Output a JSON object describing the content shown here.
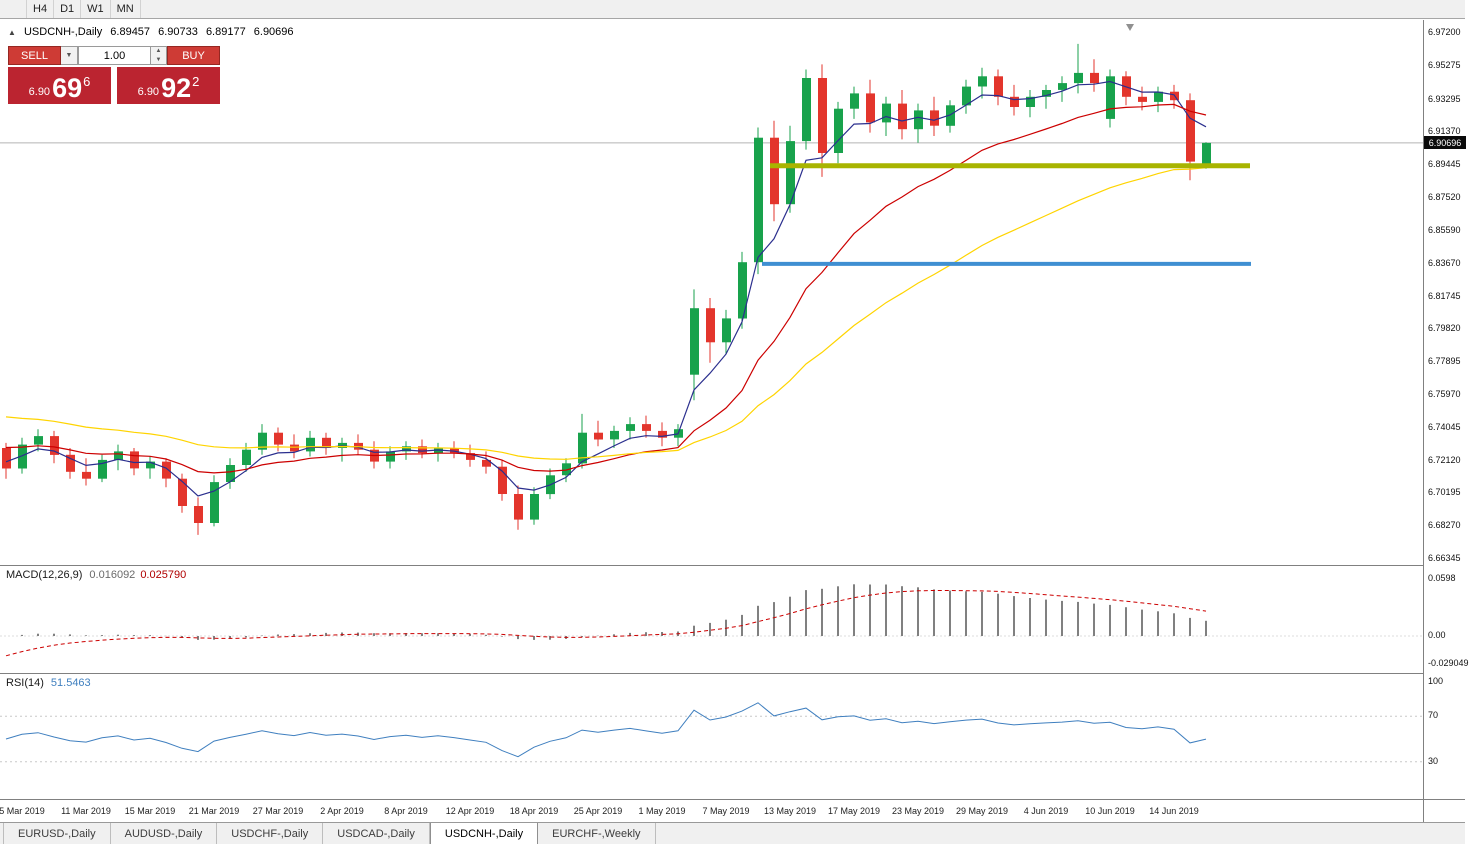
{
  "toolbar": {
    "items": [
      {
        "label": "H4"
      },
      {
        "label": "D1"
      },
      {
        "label": "W1"
      },
      {
        "label": "MN"
      }
    ]
  },
  "chart_header": {
    "collapse_icon": "▲",
    "symbol": "USDCNH-,Daily",
    "open": "6.89457",
    "high": "6.90733",
    "low": "6.89177",
    "close": "6.90696"
  },
  "trade_panel": {
    "sell_label": "SELL",
    "buy_label": "BUY",
    "volume": "1.00",
    "dropdown_icon": "▼",
    "spinner_up_icon": "▲",
    "spinner_down_icon": "▼",
    "sell_price": {
      "prefix": "6.90",
      "big": "69",
      "sup": "6"
    },
    "buy_price": {
      "prefix": "6.90",
      "big": "92",
      "sup": "2"
    }
  },
  "price_axis": {
    "labels": [
      "6.97200",
      "6.95275",
      "6.93295",
      "6.91370",
      "6.89445",
      "6.87520",
      "6.85590",
      "6.83670",
      "6.81745",
      "6.79820",
      "6.77895",
      "6.75970",
      "6.74045",
      "6.72120",
      "6.70195",
      "6.68270",
      "6.66345"
    ],
    "current": "6.90696"
  },
  "indicators": {
    "macd": {
      "label": "MACD(12,26,9)",
      "value1": "0.016092",
      "value2": "0.025790",
      "axis": [
        "0.0598",
        "0.00",
        "-0.029049"
      ]
    },
    "rsi": {
      "label": "RSI(14)",
      "value": "51.5463",
      "axis": [
        "100",
        "70",
        "30"
      ]
    }
  },
  "date_axis": {
    "labels": [
      "5 Mar 2019",
      "11 Mar 2019",
      "15 Mar 2019",
      "21 Mar 2019",
      "27 Mar 2019",
      "2 Apr 2019",
      "8 Apr 2019",
      "12 Apr 2019",
      "18 Apr 2019",
      "25 Apr 2019",
      "1 May 2019",
      "7 May 2019",
      "13 May 2019",
      "17 May 2019",
      "23 May 2019",
      "29 May 2019",
      "4 Jun 2019",
      "10 Jun 2019",
      "14 Jun 2019"
    ]
  },
  "bottom_tabs": {
    "items": [
      {
        "label": "EURUSD-,Daily",
        "active": false
      },
      {
        "label": "AUDUSD-,Daily",
        "active": false
      },
      {
        "label": "USDCHF-,Daily",
        "active": false
      },
      {
        "label": "USDCAD-,Daily",
        "active": false
      },
      {
        "label": "USDCNH-,Daily",
        "active": true
      },
      {
        "label": "EURCHF-,Weekly",
        "active": false
      }
    ]
  },
  "colors": {
    "candle_up": "#18a24c",
    "candle_down": "#e3352c",
    "macd_histogram": "#808080",
    "macd_signal": "#cc0000",
    "rsi_line": "#3f7fbf",
    "current_price_line": "#b5b5b5",
    "badge_bg": "#0a0a0a",
    "trade_button_red": "#ce3b35",
    "trade_box_red": "#bb2430"
  },
  "chart_data": {
    "type": "candlestick",
    "title": "USDCNH- Daily",
    "ylim": [
      6.66345,
      6.972
    ],
    "ohlc_last": {
      "open": 6.89457,
      "high": 6.90733,
      "low": 6.89177,
      "close": 6.90696
    },
    "candles": [
      [
        6.728,
        6.731,
        6.71,
        6.716
      ],
      [
        6.716,
        6.734,
        6.713,
        6.73
      ],
      [
        6.73,
        6.739,
        6.726,
        6.735
      ],
      [
        6.735,
        6.738,
        6.719,
        6.724
      ],
      [
        6.724,
        6.728,
        6.71,
        6.714
      ],
      [
        6.714,
        6.722,
        6.706,
        6.71
      ],
      [
        6.71,
        6.724,
        6.708,
        6.721
      ],
      [
        6.721,
        6.73,
        6.715,
        6.726
      ],
      [
        6.726,
        6.728,
        6.712,
        6.716
      ],
      [
        6.716,
        6.723,
        6.71,
        6.72
      ],
      [
        6.72,
        6.722,
        6.705,
        6.71
      ],
      [
        6.71,
        6.713,
        6.69,
        6.694
      ],
      [
        6.694,
        6.699,
        6.677,
        6.684
      ],
      [
        6.684,
        6.712,
        6.682,
        6.708
      ],
      [
        6.708,
        6.722,
        6.704,
        6.718
      ],
      [
        6.718,
        6.731,
        6.714,
        6.727
      ],
      [
        6.727,
        6.742,
        6.724,
        6.737
      ],
      [
        6.737,
        6.74,
        6.726,
        6.73
      ],
      [
        6.73,
        6.736,
        6.722,
        6.726
      ],
      [
        6.726,
        6.738,
        6.723,
        6.734
      ],
      [
        6.734,
        6.737,
        6.724,
        6.728
      ],
      [
        6.728,
        6.734,
        6.72,
        6.731
      ],
      [
        6.731,
        6.736,
        6.724,
        6.727
      ],
      [
        6.727,
        6.732,
        6.716,
        6.72
      ],
      [
        6.72,
        6.729,
        6.716,
        6.726
      ],
      [
        6.726,
        6.732,
        6.721,
        6.729
      ],
      [
        6.729,
        6.733,
        6.722,
        6.725
      ],
      [
        6.725,
        6.731,
        6.72,
        6.728
      ],
      [
        6.728,
        6.732,
        6.722,
        6.725
      ],
      [
        6.725,
        6.73,
        6.717,
        6.721
      ],
      [
        6.721,
        6.726,
        6.713,
        6.717
      ],
      [
        6.717,
        6.721,
        6.697,
        6.701
      ],
      [
        6.701,
        6.706,
        6.68,
        6.686
      ],
      [
        6.686,
        6.705,
        6.683,
        6.701
      ],
      [
        6.701,
        6.716,
        6.698,
        6.712
      ],
      [
        6.712,
        6.722,
        6.708,
        6.719
      ],
      [
        6.719,
        6.748,
        6.716,
        6.737
      ],
      [
        6.737,
        6.744,
        6.729,
        6.733
      ],
      [
        6.733,
        6.741,
        6.728,
        6.738
      ],
      [
        6.738,
        6.746,
        6.733,
        6.742
      ],
      [
        6.742,
        6.747,
        6.734,
        6.738
      ],
      [
        6.738,
        6.743,
        6.729,
        6.734
      ],
      [
        6.734,
        6.742,
        6.729,
        6.739
      ],
      [
        6.771,
        6.821,
        6.756,
        6.81
      ],
      [
        6.81,
        6.816,
        6.778,
        6.79
      ],
      [
        6.79,
        6.809,
        6.783,
        6.804
      ],
      [
        6.804,
        6.843,
        6.798,
        6.837
      ],
      [
        6.837,
        6.916,
        6.83,
        6.91
      ],
      [
        6.91,
        6.92,
        6.861,
        6.871
      ],
      [
        6.871,
        6.917,
        6.866,
        6.908
      ],
      [
        6.908,
        6.95,
        6.903,
        6.945
      ],
      [
        6.945,
        6.953,
        6.887,
        6.901
      ],
      [
        6.901,
        6.931,
        6.895,
        6.927
      ],
      [
        6.927,
        6.94,
        6.921,
        6.936
      ],
      [
        6.936,
        6.944,
        6.913,
        6.919
      ],
      [
        6.919,
        6.934,
        6.911,
        6.93
      ],
      [
        6.93,
        6.938,
        6.909,
        6.915
      ],
      [
        6.915,
        6.93,
        6.907,
        6.926
      ],
      [
        6.926,
        6.934,
        6.911,
        6.917
      ],
      [
        6.917,
        6.932,
        6.913,
        6.929
      ],
      [
        6.929,
        6.944,
        6.924,
        6.94
      ],
      [
        6.94,
        6.951,
        6.933,
        6.946
      ],
      [
        6.946,
        6.95,
        6.929,
        6.934
      ],
      [
        6.934,
        6.941,
        6.923,
        6.928
      ],
      [
        6.928,
        6.938,
        6.922,
        6.934
      ],
      [
        6.934,
        6.941,
        6.927,
        6.938
      ],
      [
        6.938,
        6.946,
        6.931,
        6.942
      ],
      [
        6.942,
        6.965,
        6.936,
        6.948
      ],
      [
        6.948,
        6.956,
        6.937,
        6.942
      ],
      [
        6.921,
        6.95,
        6.916,
        6.946
      ],
      [
        6.946,
        6.949,
        6.929,
        6.934
      ],
      [
        6.934,
        6.94,
        6.926,
        6.931
      ],
      [
        6.931,
        6.94,
        6.925,
        6.937
      ],
      [
        6.937,
        6.941,
        6.927,
        6.932
      ],
      [
        6.932,
        6.936,
        6.885,
        6.896
      ],
      [
        6.89457,
        6.90733,
        6.89177,
        6.90696
      ]
    ],
    "moving_averages": [
      {
        "name": "ma-fast",
        "color": "#2b2f8e",
        "alpha": 0.35,
        "seed": 6.722
      },
      {
        "name": "ma-medium",
        "color": "#cc0000",
        "alpha": 0.12,
        "seed": 6.73
      },
      {
        "name": "ma-slow",
        "color": "#ffd400",
        "alpha": 0.055,
        "seed": 6.748
      }
    ],
    "trendlines": [
      {
        "name": "resistance-line-olive",
        "price": 6.8935,
        "color": "#a8b400",
        "width": 5,
        "x1": 770,
        "x2": 1250
      },
      {
        "name": "support-line-blue",
        "price": 6.836,
        "color": "#3f8fd2",
        "width": 4,
        "x1": 762,
        "x2": 1251
      }
    ],
    "macd": {
      "fast": 12,
      "slow": 26,
      "signal": 9,
      "signal_seed": -0.026
    },
    "rsi": {
      "period": 14,
      "levels": [
        70,
        30
      ]
    }
  }
}
